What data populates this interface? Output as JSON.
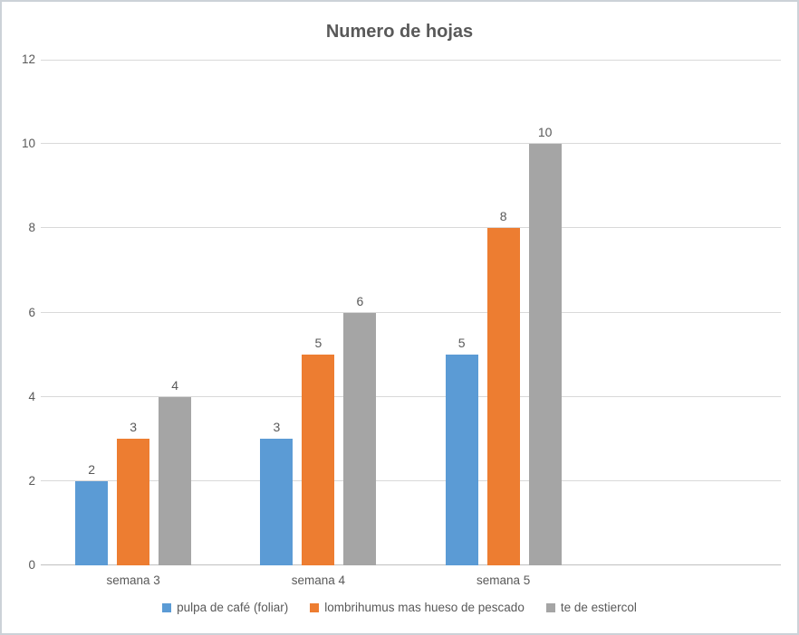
{
  "chart_data": {
    "type": "bar",
    "title": "Numero de hojas",
    "categories": [
      "semana 3",
      "semana 4",
      "semana 5"
    ],
    "series": [
      {
        "name": "pulpa de café (foliar)",
        "color": "#5B9BD5",
        "values": [
          2,
          3,
          5
        ]
      },
      {
        "name": "lombrihumus mas hueso de pescado",
        "color": "#ED7D31",
        "values": [
          3,
          5,
          8
        ]
      },
      {
        "name": "te de estiercol",
        "color": "#A5A5A5",
        "values": [
          4,
          6,
          10
        ]
      }
    ],
    "xlabel": "",
    "ylabel": "",
    "ylim": [
      0,
      12
    ],
    "yticks": [
      0,
      2,
      4,
      6,
      8,
      10,
      12
    ],
    "grid": true,
    "data_labels": true,
    "legend_position": "bottom",
    "num_category_slots": 4
  },
  "colors": {
    "title_text": "#595959",
    "axis_text": "#595959",
    "gridline": "#d9d9d9",
    "axis_line": "#bfbfbf",
    "background": "#ffffff",
    "frame_border": "#ccd2d8"
  }
}
